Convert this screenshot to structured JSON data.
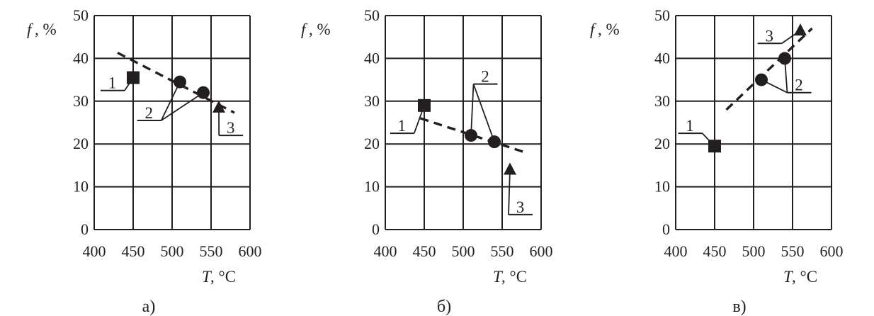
{
  "colors": {
    "ink": "#231f20",
    "background": "#ffffff"
  },
  "chart_data": [
    {
      "type": "scatter",
      "caption": "а)",
      "ylabel_symbol": "f",
      "ylabel_unit": ", %",
      "xlabel_symbol": "T",
      "xlabel_unit": ",  °C",
      "xlim": [
        400,
        600
      ],
      "ylim": [
        0,
        50
      ],
      "xticks": [
        "400",
        "450",
        "500",
        "550",
        "600"
      ],
      "yticks": [
        "0",
        "10",
        "20",
        "30",
        "40",
        "50"
      ],
      "grid": true,
      "series": [
        {
          "label": "1",
          "marker": "square",
          "points": [
            [
              450,
              35.5
            ]
          ]
        },
        {
          "label": "2",
          "marker": "circle",
          "points": [
            [
              510,
              34.5
            ],
            [
              540,
              32
            ]
          ]
        },
        {
          "label": "3",
          "marker": "triangle",
          "points": [
            [
              560,
              28.5
            ]
          ]
        }
      ],
      "trendline": {
        "style": "dashed",
        "points": [
          [
            430,
            41.3
          ],
          [
            580,
            27.3
          ]
        ]
      },
      "callouts": [
        {
          "label": "1",
          "anchor": [
            450,
            35.5
          ],
          "text_at": [
            420,
            32.5
          ],
          "underline_to": [
            430,
            32.5
          ]
        },
        {
          "label": "2",
          "anchors": [
            [
              510,
              34.5
            ],
            [
              540,
              32
            ]
          ],
          "text_at": [
            467,
            25.5
          ],
          "underline_to": [
            477,
            25.5
          ]
        },
        {
          "label": "3",
          "anchor": [
            560,
            28.5
          ],
          "text_at": [
            572,
            22
          ],
          "underline_to": [
            582,
            22
          ]
        }
      ]
    },
    {
      "type": "scatter",
      "caption": "б)",
      "ylabel_symbol": "f",
      "ylabel_unit": ", %",
      "xlabel_symbol": "T",
      "xlabel_unit": ",  °C",
      "xlim": [
        400,
        600
      ],
      "ylim": [
        0,
        50
      ],
      "xticks": [
        "400",
        "450",
        "500",
        "550",
        "600"
      ],
      "yticks": [
        "0",
        "10",
        "20",
        "30",
        "40",
        "50"
      ],
      "grid": true,
      "series": [
        {
          "label": "1",
          "marker": "square",
          "points": [
            [
              450,
              29
            ]
          ]
        },
        {
          "label": "2",
          "marker": "circle",
          "points": [
            [
              510,
              22
            ],
            [
              540,
              20.5
            ]
          ]
        },
        {
          "label": "3",
          "marker": "triangle",
          "points": [
            [
              560,
              14
            ]
          ]
        }
      ],
      "trendline": {
        "style": "dashed",
        "points": [
          [
            445,
            26
          ],
          [
            580,
            18
          ]
        ]
      },
      "callouts": [
        {
          "label": "1",
          "anchor": [
            450,
            29
          ],
          "text_at": [
            418,
            22.5
          ],
          "underline_to": [
            428,
            22.5
          ]
        },
        {
          "label": "2",
          "anchors": [
            [
              510,
              22
            ],
            [
              540,
              20.5
            ]
          ],
          "text_at": [
            525,
            34
          ],
          "underline_to": [
            535,
            34
          ]
        },
        {
          "label": "3",
          "anchor": [
            560,
            14
          ],
          "text_at": [
            570,
            3.5
          ],
          "underline_to": [
            580,
            3.5
          ]
        }
      ]
    },
    {
      "type": "scatter",
      "caption": "в)",
      "ylabel_symbol": "f",
      "ylabel_unit": ", %",
      "xlabel_symbol": "T",
      "xlabel_unit": ",  °C",
      "xlim": [
        400,
        600
      ],
      "ylim": [
        0,
        50
      ],
      "xticks": [
        "400",
        "450",
        "500",
        "550",
        "600"
      ],
      "yticks": [
        "0",
        "10",
        "20",
        "30",
        "40",
        "50"
      ],
      "grid": true,
      "series": [
        {
          "label": "1",
          "marker": "square",
          "points": [
            [
              450,
              19.5
            ]
          ]
        },
        {
          "label": "2",
          "marker": "circle",
          "points": [
            [
              510,
              35
            ],
            [
              540,
              40
            ]
          ]
        },
        {
          "label": "3",
          "marker": "triangle",
          "points": [
            [
              560,
              46.5
            ]
          ]
        }
      ],
      "trendline": {
        "style": "dashed",
        "points": [
          [
            465,
            28
          ],
          [
            575,
            47
          ]
        ]
      },
      "callouts": [
        {
          "label": "1",
          "anchor": [
            450,
            19.5
          ],
          "text_at": [
            415,
            22.5
          ],
          "underline_to": [
            425,
            22.5
          ]
        },
        {
          "label": "2",
          "anchors": [
            [
              510,
              35
            ],
            [
              540,
              40
            ]
          ],
          "text_at": [
            555,
            32
          ],
          "underline_to": [
            565,
            32
          ]
        },
        {
          "label": "3",
          "anchor": [
            560,
            46.5
          ],
          "text_at": [
            517,
            43.5
          ],
          "underline_to": [
            527,
            43.5
          ]
        }
      ]
    }
  ]
}
